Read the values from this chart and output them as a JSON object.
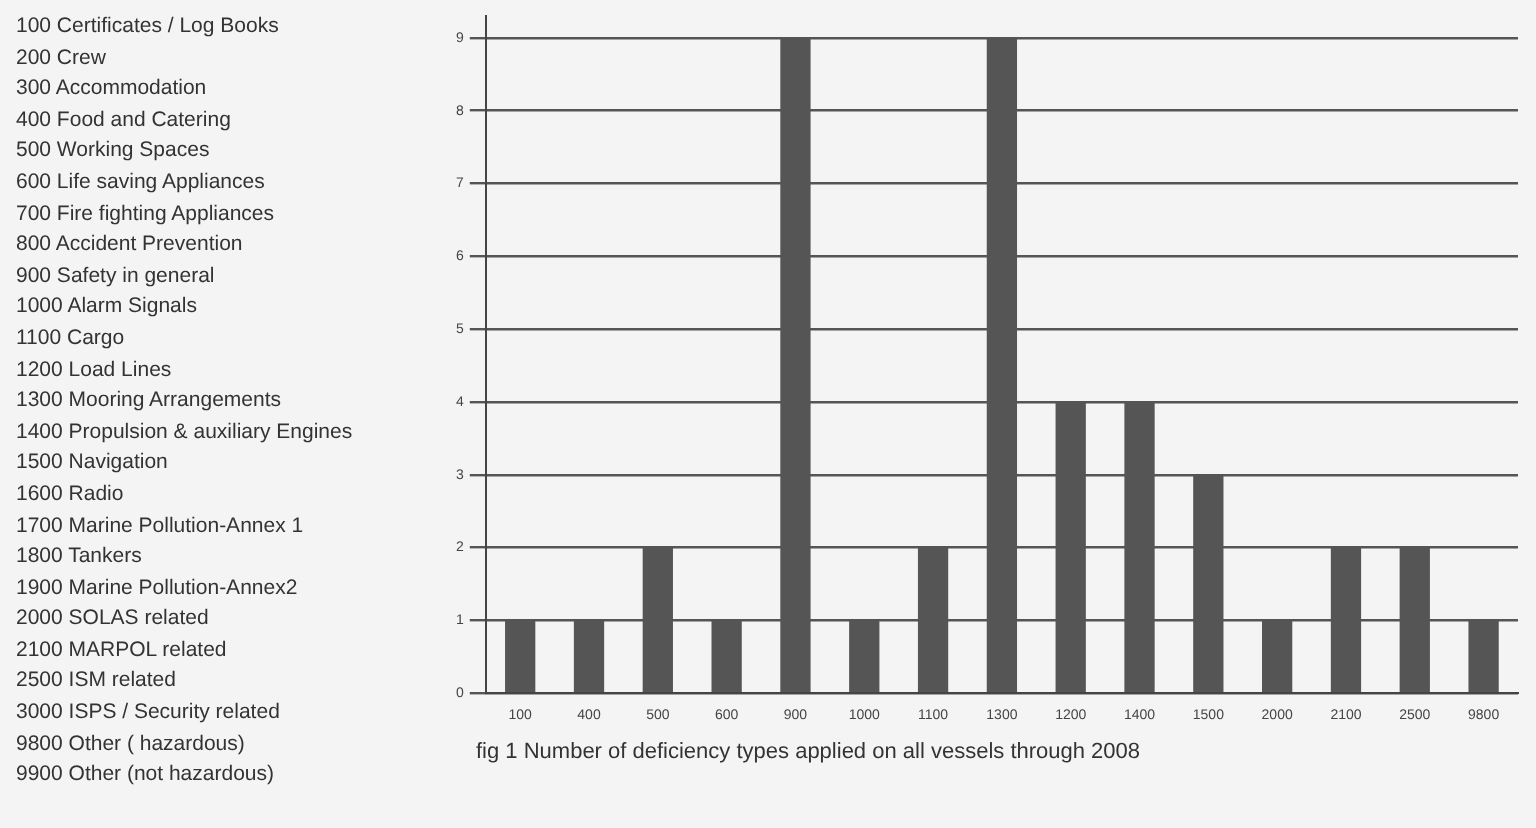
{
  "chart_data": {
    "type": "bar",
    "title": "fig 1 Number of deficiency types applied on all vessels through 2008",
    "categories": [
      "100",
      "400",
      "500",
      "600",
      "900",
      "1000",
      "1100",
      "1300",
      "1200",
      "1400",
      "1500",
      "2000",
      "2100",
      "2500",
      "9800"
    ],
    "values": [
      1,
      1,
      2,
      1,
      9,
      1,
      2,
      9,
      4,
      4,
      3,
      1,
      2,
      2,
      1
    ],
    "color": "#555555",
    "ylim": [
      0,
      9.3
    ],
    "yticks": [
      0,
      1,
      2,
      3,
      4,
      5,
      6,
      7,
      8,
      9
    ],
    "grid": "y",
    "legend": false,
    "annotations": [
      "100 Certificates / Log Books",
      "200 Crew",
      "300 Accommodation",
      "400 Food and Catering",
      "500 Working Spaces",
      "600 Life saving Appliances",
      "700 Fire fighting Appliances",
      "800 Accident Prevention",
      "900 Safety in general",
      "1000 Alarm Signals",
      "1100 Cargo",
      "1200 Load Lines",
      "1300 Mooring Arrangements",
      "1400 Propulsion & auxiliary Engines",
      "1500 Navigation",
      "1600 Radio",
      "1700 Marine Pollution-Annex 1",
      "1800 Tankers",
      "1900 Marine Pollution-Annex2",
      "2000 SOLAS related",
      "2100 MARPOL related",
      "2500 ISM related",
      "3000 ISPS / Security related",
      "9800 Other ( hazardous)",
      "9900 Other (not hazardous)"
    ]
  }
}
